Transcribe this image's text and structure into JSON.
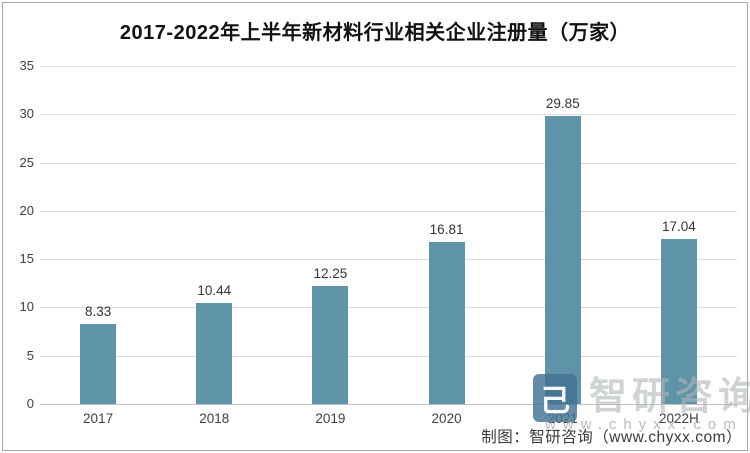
{
  "title": "2017-2022年上半年新材料行业相关企业注册量（万家）",
  "chart_data": {
    "type": "bar",
    "title": "2017-2022年上半年新材料行业相关企业注册量（万家）",
    "categories": [
      "2017",
      "2018",
      "2019",
      "2020",
      "2021",
      "2022H"
    ],
    "values": [
      8.33,
      10.44,
      12.25,
      16.81,
      29.85,
      17.04
    ],
    "xlabel": "",
    "ylabel": "",
    "ylim": [
      0,
      35
    ],
    "yticks": [
      0,
      5,
      10,
      15,
      20,
      25,
      30,
      35
    ],
    "grid": true,
    "legend": "none",
    "bar_color": "#5e93a8",
    "value_label_decimals": 2
  },
  "watermark": {
    "logo_glyph": "己",
    "brand": "智研咨询",
    "url": "www.chyxx.com"
  },
  "footer": {
    "credit": "制图：智研咨询（www.chyxx.com）"
  },
  "colors": {
    "bar": "#5e93a8",
    "gridline": "#dddddd",
    "axis_line": "#c2c2c2",
    "tick_text": "#404040",
    "value_text": "#333333",
    "title_text": "#111111",
    "border": "#a8a8a8",
    "watermark_logo": "#437192",
    "watermark_text": "#b0b5b8",
    "footer_text": "#3a3a3a"
  }
}
